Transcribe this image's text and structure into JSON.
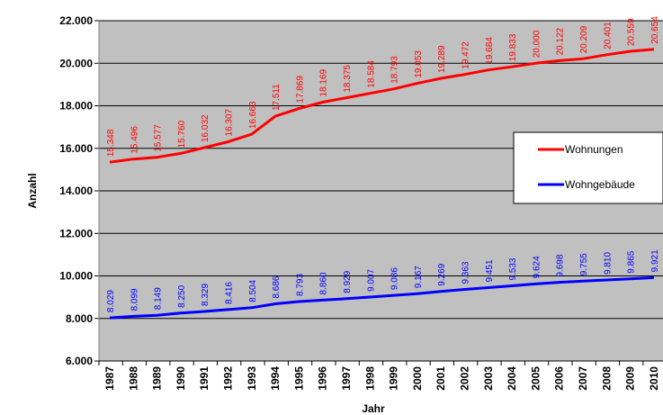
{
  "chart_data": {
    "type": "line",
    "title": "",
    "xlabel": "Jahr",
    "ylabel": "Anzahl",
    "categories": [
      "1987",
      "1988",
      "1989",
      "1990",
      "1991",
      "1992",
      "1993",
      "1994",
      "1995",
      "1996",
      "1997",
      "1998",
      "1999",
      "2000",
      "2001",
      "2002",
      "2003",
      "2004",
      "2005",
      "2006",
      "2007",
      "2008",
      "2009",
      "2010"
    ],
    "ylim": [
      6000,
      22000
    ],
    "yticks": [
      6000,
      8000,
      10000,
      12000,
      14000,
      16000,
      18000,
      20000,
      22000
    ],
    "ytick_labels": [
      "6.000",
      "8.000",
      "10.000",
      "12.000",
      "14.000",
      "16.000",
      "18.000",
      "20.000",
      "22.000"
    ],
    "grid": "horizontal",
    "background_color": "#c0c0c0",
    "legend_position": "right",
    "series": [
      {
        "name": "Wohnungen",
        "color": "#ff0000",
        "values": [
          15348,
          15496,
          15577,
          15760,
          16032,
          16307,
          16663,
          17511,
          17869,
          18169,
          18375,
          18584,
          18793,
          19053,
          19289,
          19472,
          19684,
          19833,
          20000,
          20122,
          20209,
          20401,
          20559,
          20654
        ],
        "labels": [
          "15.348",
          "15.496",
          "15.577",
          "15.760",
          "16.032",
          "16.307",
          "16.663",
          "17.511",
          "17.869",
          "18.169",
          "18.375",
          "18.584",
          "18.793",
          "19.053",
          "19.289",
          "19.472",
          "19.684",
          "19.833",
          "20.000",
          "20.122",
          "20.209",
          "20.401",
          "20.559",
          "20.654"
        ]
      },
      {
        "name": "Wohngebäude",
        "color": "#0000ff",
        "values": [
          8029,
          8099,
          8149,
          8250,
          8329,
          8416,
          8504,
          8686,
          8793,
          8860,
          8929,
          9007,
          9086,
          9167,
          9269,
          9363,
          9451,
          9533,
          9624,
          9698,
          9755,
          9810,
          9865,
          9921
        ],
        "labels": [
          "8.029",
          "8.099",
          "8.149",
          "8.250",
          "8.329",
          "8.416",
          "8.504",
          "8.686",
          "8.793",
          "8.860",
          "8.929",
          "9.007",
          "9.086",
          "9.167",
          "9.269",
          "9.363",
          "9.451",
          "9.533",
          "9.624",
          "9.698",
          "9.755",
          "9.810",
          "9.865",
          "9.921"
        ]
      }
    ]
  }
}
